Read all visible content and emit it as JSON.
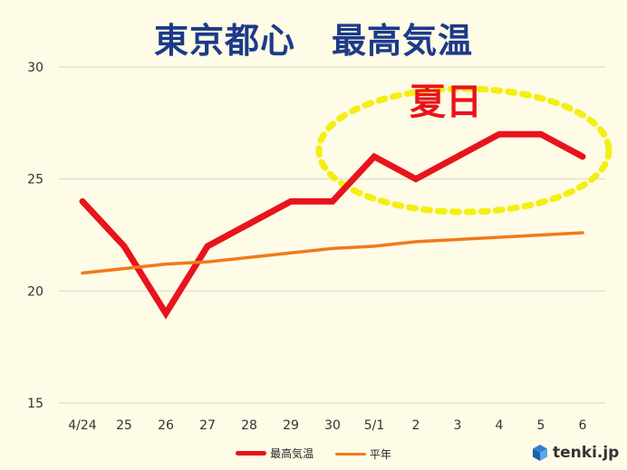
{
  "title": {
    "part1": "東京都心",
    "part2": "最高気温"
  },
  "annotation": "夏日",
  "logo_text": "tenki.jp",
  "colors": {
    "background": "#fefbe6",
    "title": "#1c3a8a",
    "max_temp_line": "#e8141b",
    "normal_line": "#f07a1a",
    "highlight_ellipse": "#f3ef12",
    "grid": "#d9d6cc"
  },
  "chart_data": {
    "type": "line",
    "title": "東京都心　最高気温",
    "xlabel": "",
    "ylabel": "",
    "categories": [
      "4/24",
      "25",
      "26",
      "27",
      "28",
      "29",
      "30",
      "5/1",
      "2",
      "3",
      "4",
      "5",
      "6"
    ],
    "ylim": [
      15,
      30
    ],
    "yticks": [
      15,
      20,
      25,
      30
    ],
    "grid": true,
    "legend_position": "bottom",
    "series": [
      {
        "name": "最高気温",
        "color": "#e8141b",
        "values": [
          24,
          22,
          19,
          22,
          23,
          24,
          24,
          26,
          25,
          26,
          27,
          27,
          26
        ]
      },
      {
        "name": "平年",
        "color": "#f07a1a",
        "values": [
          20.8,
          21.0,
          21.2,
          21.3,
          21.5,
          21.7,
          21.9,
          22.0,
          22.2,
          22.3,
          22.4,
          22.5,
          22.6
        ]
      }
    ]
  }
}
